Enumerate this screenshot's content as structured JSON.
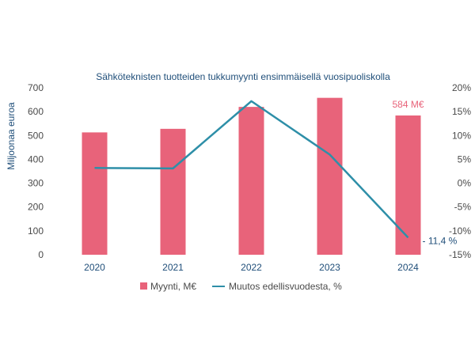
{
  "chart_data": {
    "type": "bar",
    "title": "Sähköteknisten tuotteiden tukkumyynti ensimmäisellä vuosipuoliskolla",
    "ylabel": "Miljoonaa euroa",
    "categories": [
      "2020",
      "2021",
      "2022",
      "2023",
      "2024"
    ],
    "ylim": [
      0,
      700
    ],
    "yticks": [
      "0",
      "100",
      "200",
      "300",
      "400",
      "500",
      "600",
      "700"
    ],
    "y2lim": [
      -15,
      20
    ],
    "y2ticks": [
      "-15%",
      "-10%",
      "-5%",
      "0%",
      "5%",
      "10%",
      "15%",
      "20%"
    ],
    "grid": false,
    "legend_placement": "bottom",
    "series": [
      {
        "name": "Myynti, M€",
        "type": "bar",
        "axis": "left",
        "color": "#e8637a",
        "values": [
          513,
          528,
          620,
          658,
          584
        ]
      },
      {
        "name": "Muutos edellisvuodesta, %",
        "type": "line",
        "axis": "right",
        "color": "#2e8fa8",
        "values": [
          3.2,
          3.1,
          17.2,
          6.0,
          -11.4
        ]
      }
    ],
    "annotations": {
      "bar_label": "584 M€",
      "line_label": "- 11,4 %"
    }
  }
}
